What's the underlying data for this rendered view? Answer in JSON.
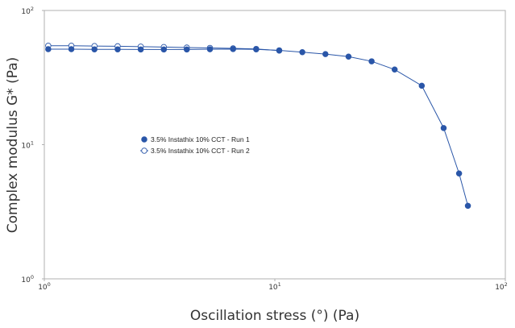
{
  "chart_data": {
    "type": "scatter",
    "title": "",
    "xlabel": "Oscillation stress  (°)  (Pa)",
    "ylabel": "Complex modulus  G*  (Pa)",
    "xscale": "log",
    "yscale": "log",
    "xlim": [
      1,
      100
    ],
    "ylim": [
      1,
      100
    ],
    "x_ticks": [
      {
        "value": 1,
        "base": "10",
        "exp": "0"
      },
      {
        "value": 10,
        "base": "10",
        "exp": "1"
      },
      {
        "value": 100,
        "base": "10",
        "exp": "2"
      }
    ],
    "y_ticks": [
      {
        "value": 1,
        "base": "10",
        "exp": "0"
      },
      {
        "value": 10,
        "base": "10",
        "exp": "1"
      },
      {
        "value": 100,
        "base": "10",
        "exp": "2"
      }
    ],
    "grid": false,
    "legend_position": "center-left",
    "series": [
      {
        "name": "3.5% Instathix 10% CCT - Run 1",
        "marker": "filled-circle",
        "color": "#2a56a8",
        "line": true,
        "points": [
          [
            1.04,
            51.5
          ],
          [
            1.31,
            51.5
          ],
          [
            1.65,
            51.3
          ],
          [
            2.08,
            51.3
          ],
          [
            2.62,
            51.2
          ],
          [
            3.3,
            51.2
          ],
          [
            4.15,
            51.2
          ],
          [
            5.23,
            51.4
          ],
          [
            6.59,
            51.6
          ],
          [
            8.3,
            51.3
          ],
          [
            10.45,
            50.4
          ],
          [
            13.16,
            48.9
          ],
          [
            16.58,
            47.3
          ],
          [
            20.88,
            45.3
          ],
          [
            26.3,
            41.8
          ],
          [
            33.1,
            36.3
          ],
          [
            43.4,
            27.5
          ],
          [
            54.0,
            13.3
          ],
          [
            63.0,
            6.1
          ],
          [
            68.8,
            3.5
          ]
        ]
      },
      {
        "name": "3.5% Instathix 10% CCT - Run 2",
        "marker": "open-circle",
        "color": "#2a56a8",
        "line": true,
        "points": [
          [
            1.04,
            54.6
          ],
          [
            1.31,
            54.6
          ],
          [
            1.65,
            54.3
          ],
          [
            2.08,
            54.1
          ],
          [
            2.62,
            53.8
          ],
          [
            3.3,
            53.4
          ],
          [
            4.15,
            52.9
          ],
          [
            5.23,
            52.6
          ],
          [
            6.59,
            52.2
          ],
          [
            8.3,
            51.7
          ],
          [
            10.45,
            50.3
          ]
        ]
      }
    ]
  }
}
